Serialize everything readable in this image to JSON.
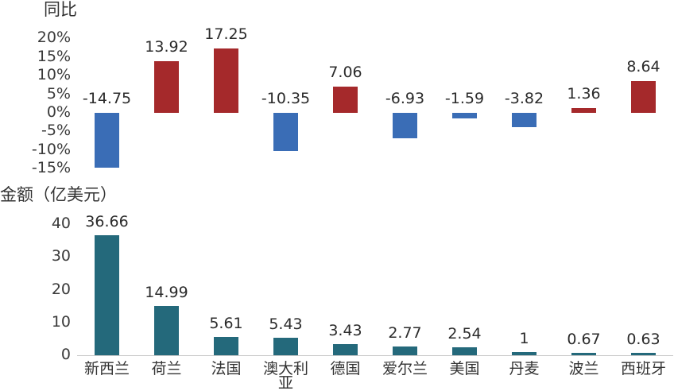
{
  "chart_data": {
    "type": "bar",
    "categories": [
      "新西兰",
      "荷兰",
      "法国",
      "澳大利亚",
      "德国",
      "爱尔兰",
      "美国",
      "丹麦",
      "波兰",
      "西班牙"
    ],
    "panels": [
      {
        "ylabel": "同比",
        "ylim": [
          -15,
          20
        ],
        "yticks": [
          20,
          15,
          10,
          5,
          0,
          -5,
          -10,
          -15
        ],
        "ytick_labels": [
          "20%",
          "15%",
          "10%",
          "5%",
          "0%",
          "-5%",
          "-10%",
          "-15%"
        ],
        "values": [
          -14.75,
          13.92,
          17.25,
          -10.35,
          7.06,
          -6.93,
          -1.59,
          -3.82,
          1.36,
          8.64
        ],
        "colors": {
          "positive": "#A5292B",
          "negative": "#3A6DB6"
        },
        "grid": false
      },
      {
        "ylabel": "金额（亿美元）",
        "ylim": [
          0,
          40
        ],
        "yticks": [
          40,
          30,
          20,
          10,
          0
        ],
        "ytick_labels": [
          "40",
          "30",
          "20",
          "10",
          "0"
        ],
        "values": [
          36.66,
          14.99,
          5.61,
          5.43,
          3.43,
          2.77,
          2.54,
          1,
          0.67,
          0.63
        ],
        "color": "#24697B",
        "grid": false
      }
    ]
  }
}
